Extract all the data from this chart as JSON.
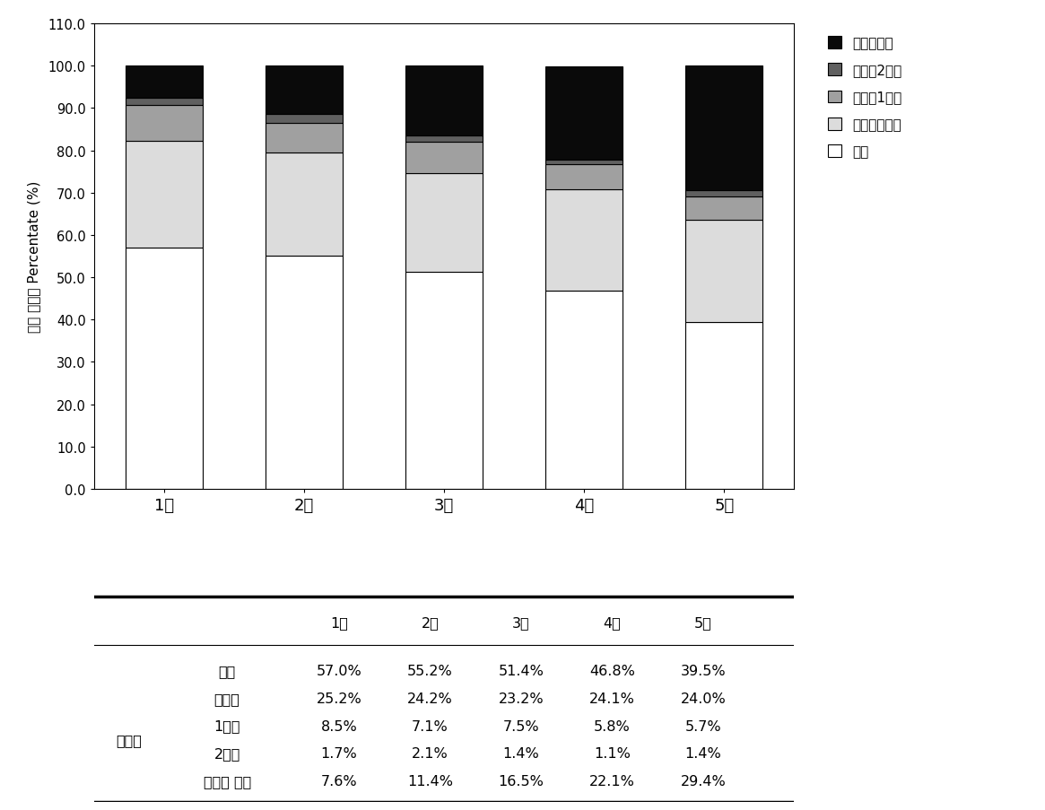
{
  "categories": [
    "1기",
    "2기",
    "3기",
    "4기",
    "5기"
  ],
  "series": {
    "정상": [
      57.0,
      55.2,
      51.4,
      46.8,
      39.5
    ],
    "고혁압전단계": [
      25.2,
      24.2,
      23.2,
      24.1,
      24.0
    ],
    "고혁압1단계": [
      8.5,
      7.1,
      7.5,
      5.8,
      5.7
    ],
    "고혁압2단계": [
      1.7,
      2.1,
      1.4,
      1.1,
      1.4
    ],
    "혁압약복용": [
      7.6,
      11.4,
      16.5,
      22.1,
      29.4
    ]
  },
  "colors": {
    "정상": "#FFFFFF",
    "고혁압전단계": "#DCDCDC",
    "고혁압1단계": "#A0A0A0",
    "고혁압2단계": "#606060",
    "혁압약복용": "#0A0A0A"
  },
  "legend_labels": [
    "혁압약복용",
    "고혁압2단계",
    "고혁압1단계",
    "고혁압전단계",
    "정상"
  ],
  "ylabel": "혁압 단계별 Percentate (%)",
  "ylim": [
    0,
    110
  ],
  "yticks": [
    0.0,
    10.0,
    20.0,
    30.0,
    40.0,
    50.0,
    60.0,
    70.0,
    80.0,
    90.0,
    100.0,
    110.0
  ],
  "table_rows": [
    "정상",
    "전단계",
    "1단계",
    "2단계",
    "혁압약 복용"
  ],
  "table_group_label": "고혁압",
  "table_data": [
    [
      "57.0%",
      "55.2%",
      "51.4%",
      "46.8%",
      "39.5%"
    ],
    [
      "25.2%",
      "24.2%",
      "23.2%",
      "24.1%",
      "24.0%"
    ],
    [
      "8.5%",
      "7.1%",
      "7.5%",
      "5.8%",
      "5.7%"
    ],
    [
      "1.7%",
      "2.1%",
      "1.4%",
      "1.1%",
      "1.4%"
    ],
    [
      "7.6%",
      "11.4%",
      "16.5%",
      "22.1%",
      "29.4%"
    ]
  ],
  "bar_width": 0.55,
  "bar_edgecolor": "#000000",
  "background_color": "#FFFFFF"
}
